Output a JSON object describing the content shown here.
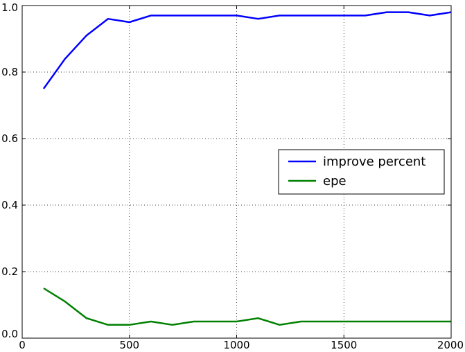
{
  "chart_data": {
    "type": "line",
    "title": "",
    "xlabel": "",
    "ylabel": "",
    "xlim": [
      0,
      2000
    ],
    "ylim": [
      0,
      1.0
    ],
    "grid": true,
    "legend_position": "center-right",
    "x": [
      100,
      200,
      300,
      400,
      500,
      600,
      700,
      800,
      900,
      1000,
      1100,
      1200,
      1300,
      1400,
      1500,
      1600,
      1700,
      1800,
      1900,
      2000
    ],
    "series": [
      {
        "name": "improve percent",
        "color": "#0000ff",
        "values": [
          0.75,
          0.84,
          0.91,
          0.96,
          0.95,
          0.97,
          0.97,
          0.97,
          0.97,
          0.97,
          0.96,
          0.97,
          0.97,
          0.97,
          0.97,
          0.97,
          0.98,
          0.98,
          0.97,
          0.98
        ]
      },
      {
        "name": "epe",
        "color": "#008000",
        "values": [
          0.15,
          0.11,
          0.06,
          0.04,
          0.04,
          0.05,
          0.04,
          0.05,
          0.05,
          0.05,
          0.06,
          0.04,
          0.05,
          0.05,
          0.05,
          0.05,
          0.05,
          0.05,
          0.05,
          0.05
        ]
      }
    ],
    "xticks": [
      0,
      500,
      1000,
      1500,
      2000
    ],
    "xtick_labels": [
      "0",
      "500",
      "1000",
      "1500",
      "2000"
    ],
    "yticks": [
      0.0,
      0.2,
      0.4,
      0.6,
      0.8,
      1.0
    ],
    "ytick_labels": [
      "0.0",
      "0.2",
      "0.4",
      "0.6",
      "0.8",
      "1.0"
    ]
  }
}
